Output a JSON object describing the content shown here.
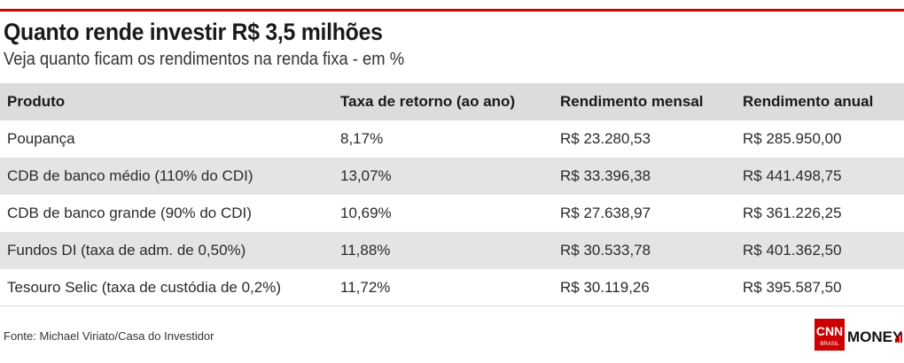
{
  "title": "Quanto rende investir R$ 3,5 milhões",
  "subtitle": "Veja quanto ficam os rendimentos na renda fixa - em %",
  "colors": {
    "accent": "#cc0000",
    "header_bg": "#dcdcdc",
    "stripe_bg": "#e4e4e4"
  },
  "chart_data": {
    "type": "table",
    "title": "Quanto rende investir R$ 3,5 milhões",
    "subtitle": "Veja quanto ficam os rendimentos na renda fixa - em %",
    "columns": [
      "Produto",
      "Taxa de retorno (ao ano)",
      "Rendimento mensal",
      "Rendimento anual"
    ],
    "rows": [
      [
        "Poupança",
        "8,17%",
        "R$ 23.280,53",
        "R$ 285.950,00"
      ],
      [
        "CDB de banco médio (110% do CDI)",
        "13,07%",
        "R$ 33.396,38",
        "R$ 441.498,75"
      ],
      [
        "CDB de banco grande (90% do CDI)",
        "10,69%",
        "R$ 27.638,97",
        "R$ 361.226,25"
      ],
      [
        "Fundos DI (taxa de adm. de 0,50%)",
        "11,88%",
        "R$ 30.533,78",
        "R$ 401.362,50"
      ],
      [
        "Tesouro Selic (taxa de custódia de 0,2%)",
        "11,72%",
        "R$ 30.119,26",
        "R$ 395.587,50"
      ]
    ]
  },
  "source": "Fonte: Michael Viriato/Casa do Investidor",
  "logo": {
    "cnn": "CNN",
    "brasil": "BRASIL",
    "money": "MONEY"
  }
}
